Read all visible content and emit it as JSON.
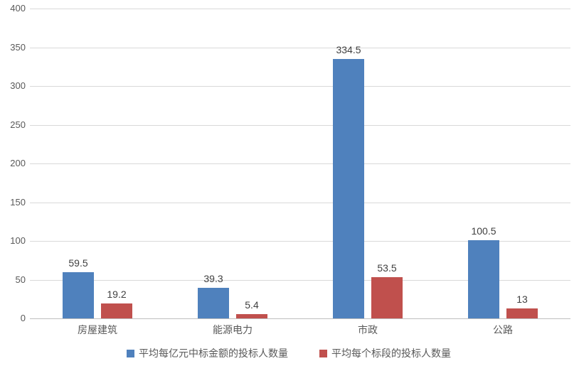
{
  "chart_data": {
    "type": "bar",
    "title": "",
    "categories": [
      "房屋建筑",
      "能源电力",
      "市政",
      "公路"
    ],
    "series": [
      {
        "name": "平均每亿元中标金额的投标人数量",
        "color": "#4F81BD",
        "values": [
          59.5,
          39.3,
          334.5,
          100.5
        ]
      },
      {
        "name": "平均每个标段的投标人数量",
        "color": "#C0504D",
        "values": [
          19.2,
          5.4,
          53.5,
          13
        ]
      }
    ],
    "xlabel": "",
    "ylabel": "",
    "ylim": [
      0,
      400
    ],
    "yticks": [
      0,
      50,
      100,
      150,
      200,
      250,
      300,
      350,
      400
    ],
    "grid": true,
    "data_labels": true,
    "legend_position": "bottom"
  },
  "colors": {
    "background": "#FFFFFF",
    "gridline": "#D9D9D9",
    "axis_line": "#BFBFBF",
    "tick_label": "#595959",
    "category_label": "#595959",
    "data_label": "#404040",
    "legend_label": "#595959",
    "series_blue": "#4F81BD",
    "series_red": "#C0504D"
  }
}
